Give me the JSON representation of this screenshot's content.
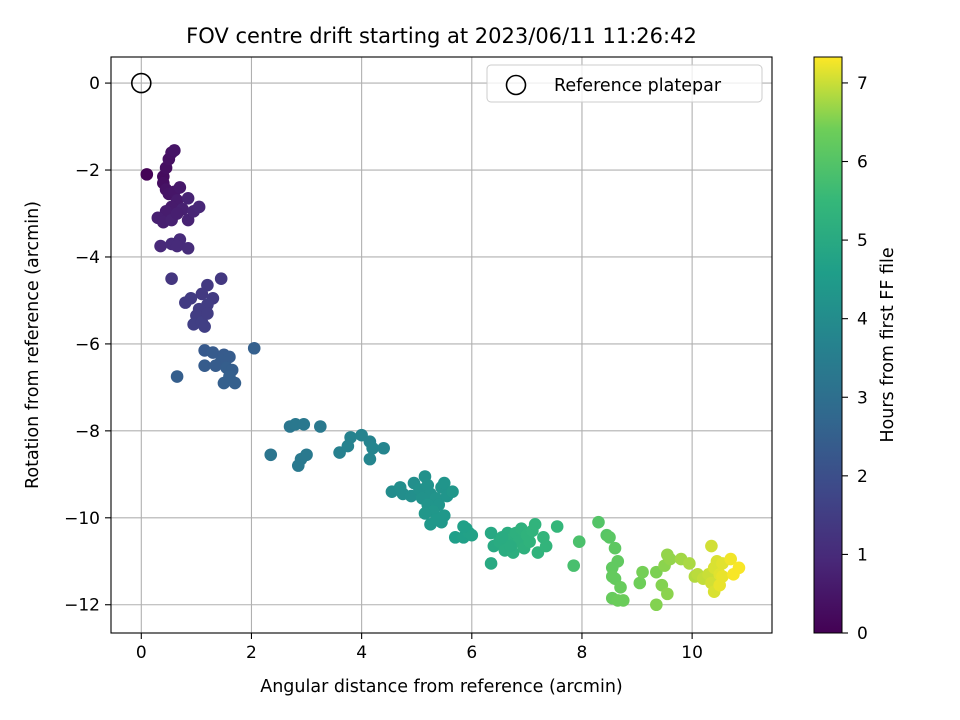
{
  "chart_data": {
    "type": "scatter",
    "title": "FOV centre drift starting at 2023/06/11 11:26:42",
    "xlabel": "Angular distance from reference (arcmin)",
    "ylabel": "Rotation from reference (arcmin)",
    "xlim": [
      -0.55,
      11.45
    ],
    "ylim": [
      -12.65,
      0.6
    ],
    "x_ticks": [
      0,
      2,
      4,
      6,
      8,
      10
    ],
    "y_ticks": [
      0,
      -2,
      -4,
      -6,
      -8,
      -10,
      -12
    ],
    "grid": true,
    "legend": {
      "placement": "top-right",
      "entries": [
        "Reference platepar"
      ]
    },
    "reference_point": {
      "x": 0,
      "y": 0
    },
    "colorbar": {
      "label": "Hours from first FF file",
      "colormap": "viridis",
      "range": [
        0,
        7.33
      ],
      "ticks": [
        0,
        1,
        2,
        3,
        4,
        5,
        6,
        7
      ]
    },
    "points": [
      {
        "x": 0.1,
        "y": -2.1,
        "h": 0.05
      },
      {
        "x": 0.4,
        "y": -2.15,
        "h": 0.25
      },
      {
        "x": 0.45,
        "y": -1.95,
        "h": 0.3
      },
      {
        "x": 0.5,
        "y": -1.75,
        "h": 0.35
      },
      {
        "x": 0.55,
        "y": -1.6,
        "h": 0.4
      },
      {
        "x": 0.6,
        "y": -1.55,
        "h": 0.45
      },
      {
        "x": 0.4,
        "y": -2.3,
        "h": 0.3
      },
      {
        "x": 0.45,
        "y": -2.45,
        "h": 0.4
      },
      {
        "x": 0.5,
        "y": -2.55,
        "h": 0.45
      },
      {
        "x": 0.6,
        "y": -2.5,
        "h": 0.5
      },
      {
        "x": 0.7,
        "y": -2.4,
        "h": 0.55
      },
      {
        "x": 0.65,
        "y": -2.7,
        "h": 0.6
      },
      {
        "x": 0.55,
        "y": -2.85,
        "h": 0.6
      },
      {
        "x": 0.45,
        "y": -2.95,
        "h": 0.65
      },
      {
        "x": 0.3,
        "y": -3.1,
        "h": 0.7
      },
      {
        "x": 0.4,
        "y": -3.2,
        "h": 0.7
      },
      {
        "x": 0.55,
        "y": -3.15,
        "h": 0.75
      },
      {
        "x": 0.75,
        "y": -2.9,
        "h": 0.75
      },
      {
        "x": 0.85,
        "y": -3.15,
        "h": 0.8
      },
      {
        "x": 0.95,
        "y": -2.95,
        "h": 0.85
      },
      {
        "x": 1.05,
        "y": -2.85,
        "h": 0.9
      },
      {
        "x": 0.85,
        "y": -2.65,
        "h": 0.8
      },
      {
        "x": 0.65,
        "y": -3.0,
        "h": 0.7
      },
      {
        "x": 0.35,
        "y": -3.75,
        "h": 0.95
      },
      {
        "x": 0.55,
        "y": -3.7,
        "h": 1.0
      },
      {
        "x": 0.7,
        "y": -3.6,
        "h": 1.0
      },
      {
        "x": 0.85,
        "y": -3.8,
        "h": 1.05
      },
      {
        "x": 0.65,
        "y": -3.75,
        "h": 1.0
      },
      {
        "x": 0.55,
        "y": -4.5,
        "h": 1.3
      },
      {
        "x": 1.45,
        "y": -4.5,
        "h": 1.35
      },
      {
        "x": 1.2,
        "y": -4.65,
        "h": 1.4
      },
      {
        "x": 1.1,
        "y": -4.85,
        "h": 1.4
      },
      {
        "x": 0.9,
        "y": -4.95,
        "h": 1.45
      },
      {
        "x": 0.8,
        "y": -5.05,
        "h": 1.45
      },
      {
        "x": 1.3,
        "y": -4.95,
        "h": 1.45
      },
      {
        "x": 1.2,
        "y": -5.1,
        "h": 1.5
      },
      {
        "x": 1.05,
        "y": -5.2,
        "h": 1.5
      },
      {
        "x": 1.0,
        "y": -5.35,
        "h": 1.5
      },
      {
        "x": 0.95,
        "y": -5.55,
        "h": 1.55
      },
      {
        "x": 1.1,
        "y": -5.5,
        "h": 1.55
      },
      {
        "x": 1.15,
        "y": -5.6,
        "h": 1.55
      },
      {
        "x": 1.2,
        "y": -5.3,
        "h": 1.5
      },
      {
        "x": 1.15,
        "y": -6.15,
        "h": 2.3
      },
      {
        "x": 1.3,
        "y": -6.2,
        "h": 2.35
      },
      {
        "x": 1.5,
        "y": -6.25,
        "h": 2.35
      },
      {
        "x": 1.6,
        "y": -6.3,
        "h": 2.4
      },
      {
        "x": 1.45,
        "y": -6.4,
        "h": 2.4
      },
      {
        "x": 1.35,
        "y": -6.5,
        "h": 2.4
      },
      {
        "x": 1.15,
        "y": -6.5,
        "h": 2.4
      },
      {
        "x": 1.55,
        "y": -6.55,
        "h": 2.45
      },
      {
        "x": 1.65,
        "y": -6.6,
        "h": 2.45
      },
      {
        "x": 1.6,
        "y": -6.75,
        "h": 2.5
      },
      {
        "x": 1.5,
        "y": -6.9,
        "h": 2.5
      },
      {
        "x": 1.7,
        "y": -6.9,
        "h": 2.5
      },
      {
        "x": 2.05,
        "y": -6.1,
        "h": 2.5
      },
      {
        "x": 0.65,
        "y": -6.75,
        "h": 2.45
      },
      {
        "x": 2.35,
        "y": -8.55,
        "h": 3.2
      },
      {
        "x": 2.7,
        "y": -7.9,
        "h": 3.25
      },
      {
        "x": 2.8,
        "y": -7.85,
        "h": 3.3
      },
      {
        "x": 2.95,
        "y": -7.85,
        "h": 3.3
      },
      {
        "x": 3.25,
        "y": -7.9,
        "h": 3.35
      },
      {
        "x": 2.9,
        "y": -8.65,
        "h": 3.35
      },
      {
        "x": 3.0,
        "y": -8.55,
        "h": 3.35
      },
      {
        "x": 2.85,
        "y": -8.8,
        "h": 3.35
      },
      {
        "x": 3.6,
        "y": -8.5,
        "h": 3.6
      },
      {
        "x": 3.75,
        "y": -8.35,
        "h": 3.65
      },
      {
        "x": 3.8,
        "y": -8.15,
        "h": 3.65
      },
      {
        "x": 4.0,
        "y": -8.1,
        "h": 3.7
      },
      {
        "x": 4.15,
        "y": -8.25,
        "h": 3.7
      },
      {
        "x": 4.2,
        "y": -8.4,
        "h": 3.75
      },
      {
        "x": 4.15,
        "y": -8.65,
        "h": 3.75
      },
      {
        "x": 4.4,
        "y": -8.4,
        "h": 3.75
      },
      {
        "x": 4.55,
        "y": -9.4,
        "h": 4.0
      },
      {
        "x": 4.7,
        "y": -9.3,
        "h": 4.05
      },
      {
        "x": 4.75,
        "y": -9.45,
        "h": 4.05
      },
      {
        "x": 4.9,
        "y": -9.5,
        "h": 4.1
      },
      {
        "x": 4.95,
        "y": -9.2,
        "h": 4.1
      },
      {
        "x": 5.05,
        "y": -9.35,
        "h": 4.15
      },
      {
        "x": 5.15,
        "y": -9.05,
        "h": 4.15
      },
      {
        "x": 5.2,
        "y": -9.25,
        "h": 4.2
      },
      {
        "x": 5.25,
        "y": -9.45,
        "h": 4.2
      },
      {
        "x": 5.1,
        "y": -9.55,
        "h": 4.2
      },
      {
        "x": 5.35,
        "y": -9.55,
        "h": 4.25
      },
      {
        "x": 5.45,
        "y": -9.3,
        "h": 4.25
      },
      {
        "x": 5.5,
        "y": -9.2,
        "h": 4.3
      },
      {
        "x": 5.55,
        "y": -9.5,
        "h": 4.3
      },
      {
        "x": 5.65,
        "y": -9.4,
        "h": 4.35
      },
      {
        "x": 5.4,
        "y": -9.7,
        "h": 4.3
      },
      {
        "x": 5.2,
        "y": -9.7,
        "h": 4.3
      },
      {
        "x": 5.3,
        "y": -9.85,
        "h": 4.35
      },
      {
        "x": 5.15,
        "y": -9.9,
        "h": 4.35
      },
      {
        "x": 5.5,
        "y": -9.95,
        "h": 4.4
      },
      {
        "x": 5.45,
        "y": -10.1,
        "h": 4.4
      },
      {
        "x": 5.25,
        "y": -10.15,
        "h": 4.4
      },
      {
        "x": 5.35,
        "y": -10.05,
        "h": 4.4
      },
      {
        "x": 5.7,
        "y": -10.45,
        "h": 4.6
      },
      {
        "x": 5.85,
        "y": -10.45,
        "h": 4.65
      },
      {
        "x": 5.9,
        "y": -10.25,
        "h": 4.65
      },
      {
        "x": 5.95,
        "y": -10.35,
        "h": 4.7
      },
      {
        "x": 6.0,
        "y": -10.4,
        "h": 4.7
      },
      {
        "x": 5.85,
        "y": -10.2,
        "h": 4.65
      },
      {
        "x": 6.35,
        "y": -10.35,
        "h": 4.95
      },
      {
        "x": 6.4,
        "y": -10.65,
        "h": 5.0
      },
      {
        "x": 6.35,
        "y": -11.05,
        "h": 5.0
      },
      {
        "x": 6.5,
        "y": -10.55,
        "h": 5.05
      },
      {
        "x": 6.6,
        "y": -10.75,
        "h": 5.1
      },
      {
        "x": 6.65,
        "y": -10.35,
        "h": 5.1
      },
      {
        "x": 6.7,
        "y": -10.5,
        "h": 5.15
      },
      {
        "x": 6.75,
        "y": -10.8,
        "h": 5.15
      },
      {
        "x": 6.8,
        "y": -10.35,
        "h": 5.2
      },
      {
        "x": 6.85,
        "y": -10.55,
        "h": 5.2
      },
      {
        "x": 6.9,
        "y": -10.25,
        "h": 5.25
      },
      {
        "x": 6.95,
        "y": -10.7,
        "h": 5.25
      },
      {
        "x": 7.0,
        "y": -10.4,
        "h": 5.3
      },
      {
        "x": 7.05,
        "y": -10.55,
        "h": 5.3
      },
      {
        "x": 7.1,
        "y": -10.3,
        "h": 5.35
      },
      {
        "x": 7.15,
        "y": -10.15,
        "h": 5.35
      },
      {
        "x": 7.2,
        "y": -10.8,
        "h": 5.35
      },
      {
        "x": 7.3,
        "y": -10.45,
        "h": 5.4
      },
      {
        "x": 7.35,
        "y": -10.65,
        "h": 5.4
      },
      {
        "x": 7.55,
        "y": -10.2,
        "h": 5.45
      },
      {
        "x": 6.55,
        "y": -10.45,
        "h": 5.05
      },
      {
        "x": 6.7,
        "y": -10.65,
        "h": 5.1
      },
      {
        "x": 7.85,
        "y": -11.1,
        "h": 5.8
      },
      {
        "x": 7.95,
        "y": -10.55,
        "h": 5.85
      },
      {
        "x": 8.3,
        "y": -10.1,
        "h": 6.0
      },
      {
        "x": 8.45,
        "y": -10.4,
        "h": 6.05
      },
      {
        "x": 8.5,
        "y": -10.45,
        "h": 6.1
      },
      {
        "x": 8.6,
        "y": -10.7,
        "h": 6.15
      },
      {
        "x": 8.65,
        "y": -11.0,
        "h": 6.2
      },
      {
        "x": 8.55,
        "y": -11.15,
        "h": 6.2
      },
      {
        "x": 8.6,
        "y": -11.4,
        "h": 6.25
      },
      {
        "x": 8.55,
        "y": -11.35,
        "h": 6.25
      },
      {
        "x": 8.7,
        "y": -11.6,
        "h": 6.3
      },
      {
        "x": 8.55,
        "y": -11.85,
        "h": 6.3
      },
      {
        "x": 8.65,
        "y": -11.9,
        "h": 6.35
      },
      {
        "x": 8.75,
        "y": -11.9,
        "h": 6.35
      },
      {
        "x": 9.05,
        "y": -11.5,
        "h": 6.4
      },
      {
        "x": 9.1,
        "y": -11.25,
        "h": 6.45
      },
      {
        "x": 9.35,
        "y": -11.25,
        "h": 6.5
      },
      {
        "x": 9.35,
        "y": -12.0,
        "h": 6.55
      },
      {
        "x": 9.45,
        "y": -11.55,
        "h": 6.55
      },
      {
        "x": 9.55,
        "y": -11.75,
        "h": 6.6
      },
      {
        "x": 9.5,
        "y": -11.1,
        "h": 6.6
      },
      {
        "x": 9.55,
        "y": -10.85,
        "h": 6.65
      },
      {
        "x": 9.6,
        "y": -10.95,
        "h": 6.65
      },
      {
        "x": 9.8,
        "y": -10.95,
        "h": 6.75
      },
      {
        "x": 9.95,
        "y": -11.05,
        "h": 6.8
      },
      {
        "x": 10.05,
        "y": -11.35,
        "h": 6.85
      },
      {
        "x": 10.1,
        "y": -11.3,
        "h": 6.9
      },
      {
        "x": 10.2,
        "y": -11.4,
        "h": 6.95
      },
      {
        "x": 10.3,
        "y": -11.3,
        "h": 7.0
      },
      {
        "x": 10.35,
        "y": -11.5,
        "h": 7.05
      },
      {
        "x": 10.35,
        "y": -10.65,
        "h": 7.05
      },
      {
        "x": 10.4,
        "y": -11.15,
        "h": 7.1
      },
      {
        "x": 10.45,
        "y": -11.0,
        "h": 7.1
      },
      {
        "x": 10.4,
        "y": -11.7,
        "h": 7.1
      },
      {
        "x": 10.5,
        "y": -11.3,
        "h": 7.15
      },
      {
        "x": 10.55,
        "y": -11.05,
        "h": 7.15
      },
      {
        "x": 10.5,
        "y": -11.55,
        "h": 7.2
      },
      {
        "x": 10.55,
        "y": -11.35,
        "h": 7.2
      },
      {
        "x": 10.7,
        "y": -10.95,
        "h": 7.25
      },
      {
        "x": 10.75,
        "y": -11.3,
        "h": 7.3
      },
      {
        "x": 10.85,
        "y": -11.15,
        "h": 7.3
      }
    ]
  }
}
